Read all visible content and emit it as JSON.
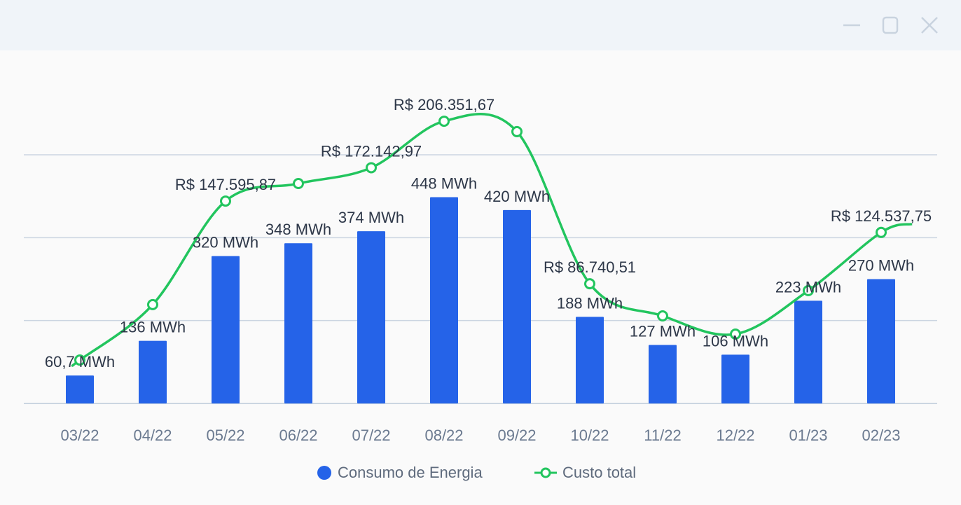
{
  "window": {
    "minimize_icon": "minimize-icon",
    "maximize_icon": "maximize-icon",
    "close_icon": "close-icon"
  },
  "colors": {
    "bar": "#2563e8",
    "line": "#22c55e",
    "grid": "#cbd5e1",
    "label": "#2d3748",
    "axis_text": "#6b7a90"
  },
  "chart_data": {
    "type": "bar",
    "categories": [
      "03/22",
      "04/22",
      "05/22",
      "06/22",
      "07/22",
      "08/22",
      "09/22",
      "10/22",
      "11/22",
      "12/22",
      "01/23",
      "02/23"
    ],
    "series": [
      {
        "name": "Consumo de Energia",
        "type": "bar",
        "unit": "MWh",
        "values": [
          60.7,
          136,
          320,
          348,
          374,
          448,
          420,
          188,
          127,
          106,
          223,
          270
        ],
        "labels": [
          "60,7 MWh",
          "136 MWh",
          "320 MWh",
          "348 MWh",
          "374 MWh",
          "448 MWh",
          "420 MWh",
          "188 MWh",
          "127 MWh",
          "106 MWh",
          "223 MWh",
          "270 MWh"
        ]
      },
      {
        "name": "Custo total",
        "type": "line",
        "unit": "R$",
        "values": [
          30600,
          71400,
          147595.87,
          160500,
          172142.97,
          206351.67,
          198700,
          86740.51,
          63100,
          49700,
          81700,
          124537.75
        ],
        "labels": [
          "",
          "",
          "R$ 147.595,87",
          "",
          "R$ 172.142,97",
          "R$ 206.351,67",
          "",
          "R$ 86.740,51",
          "",
          "",
          "",
          "R$ 124.537,75"
        ]
      }
    ],
    "y_bar_range": [
      0,
      540
    ],
    "y_line_range": [
      -295000,
      295000
    ],
    "grid": true,
    "legend_position": "bottom-center",
    "legend": [
      "Consumo de Energia",
      "Custo total"
    ]
  }
}
